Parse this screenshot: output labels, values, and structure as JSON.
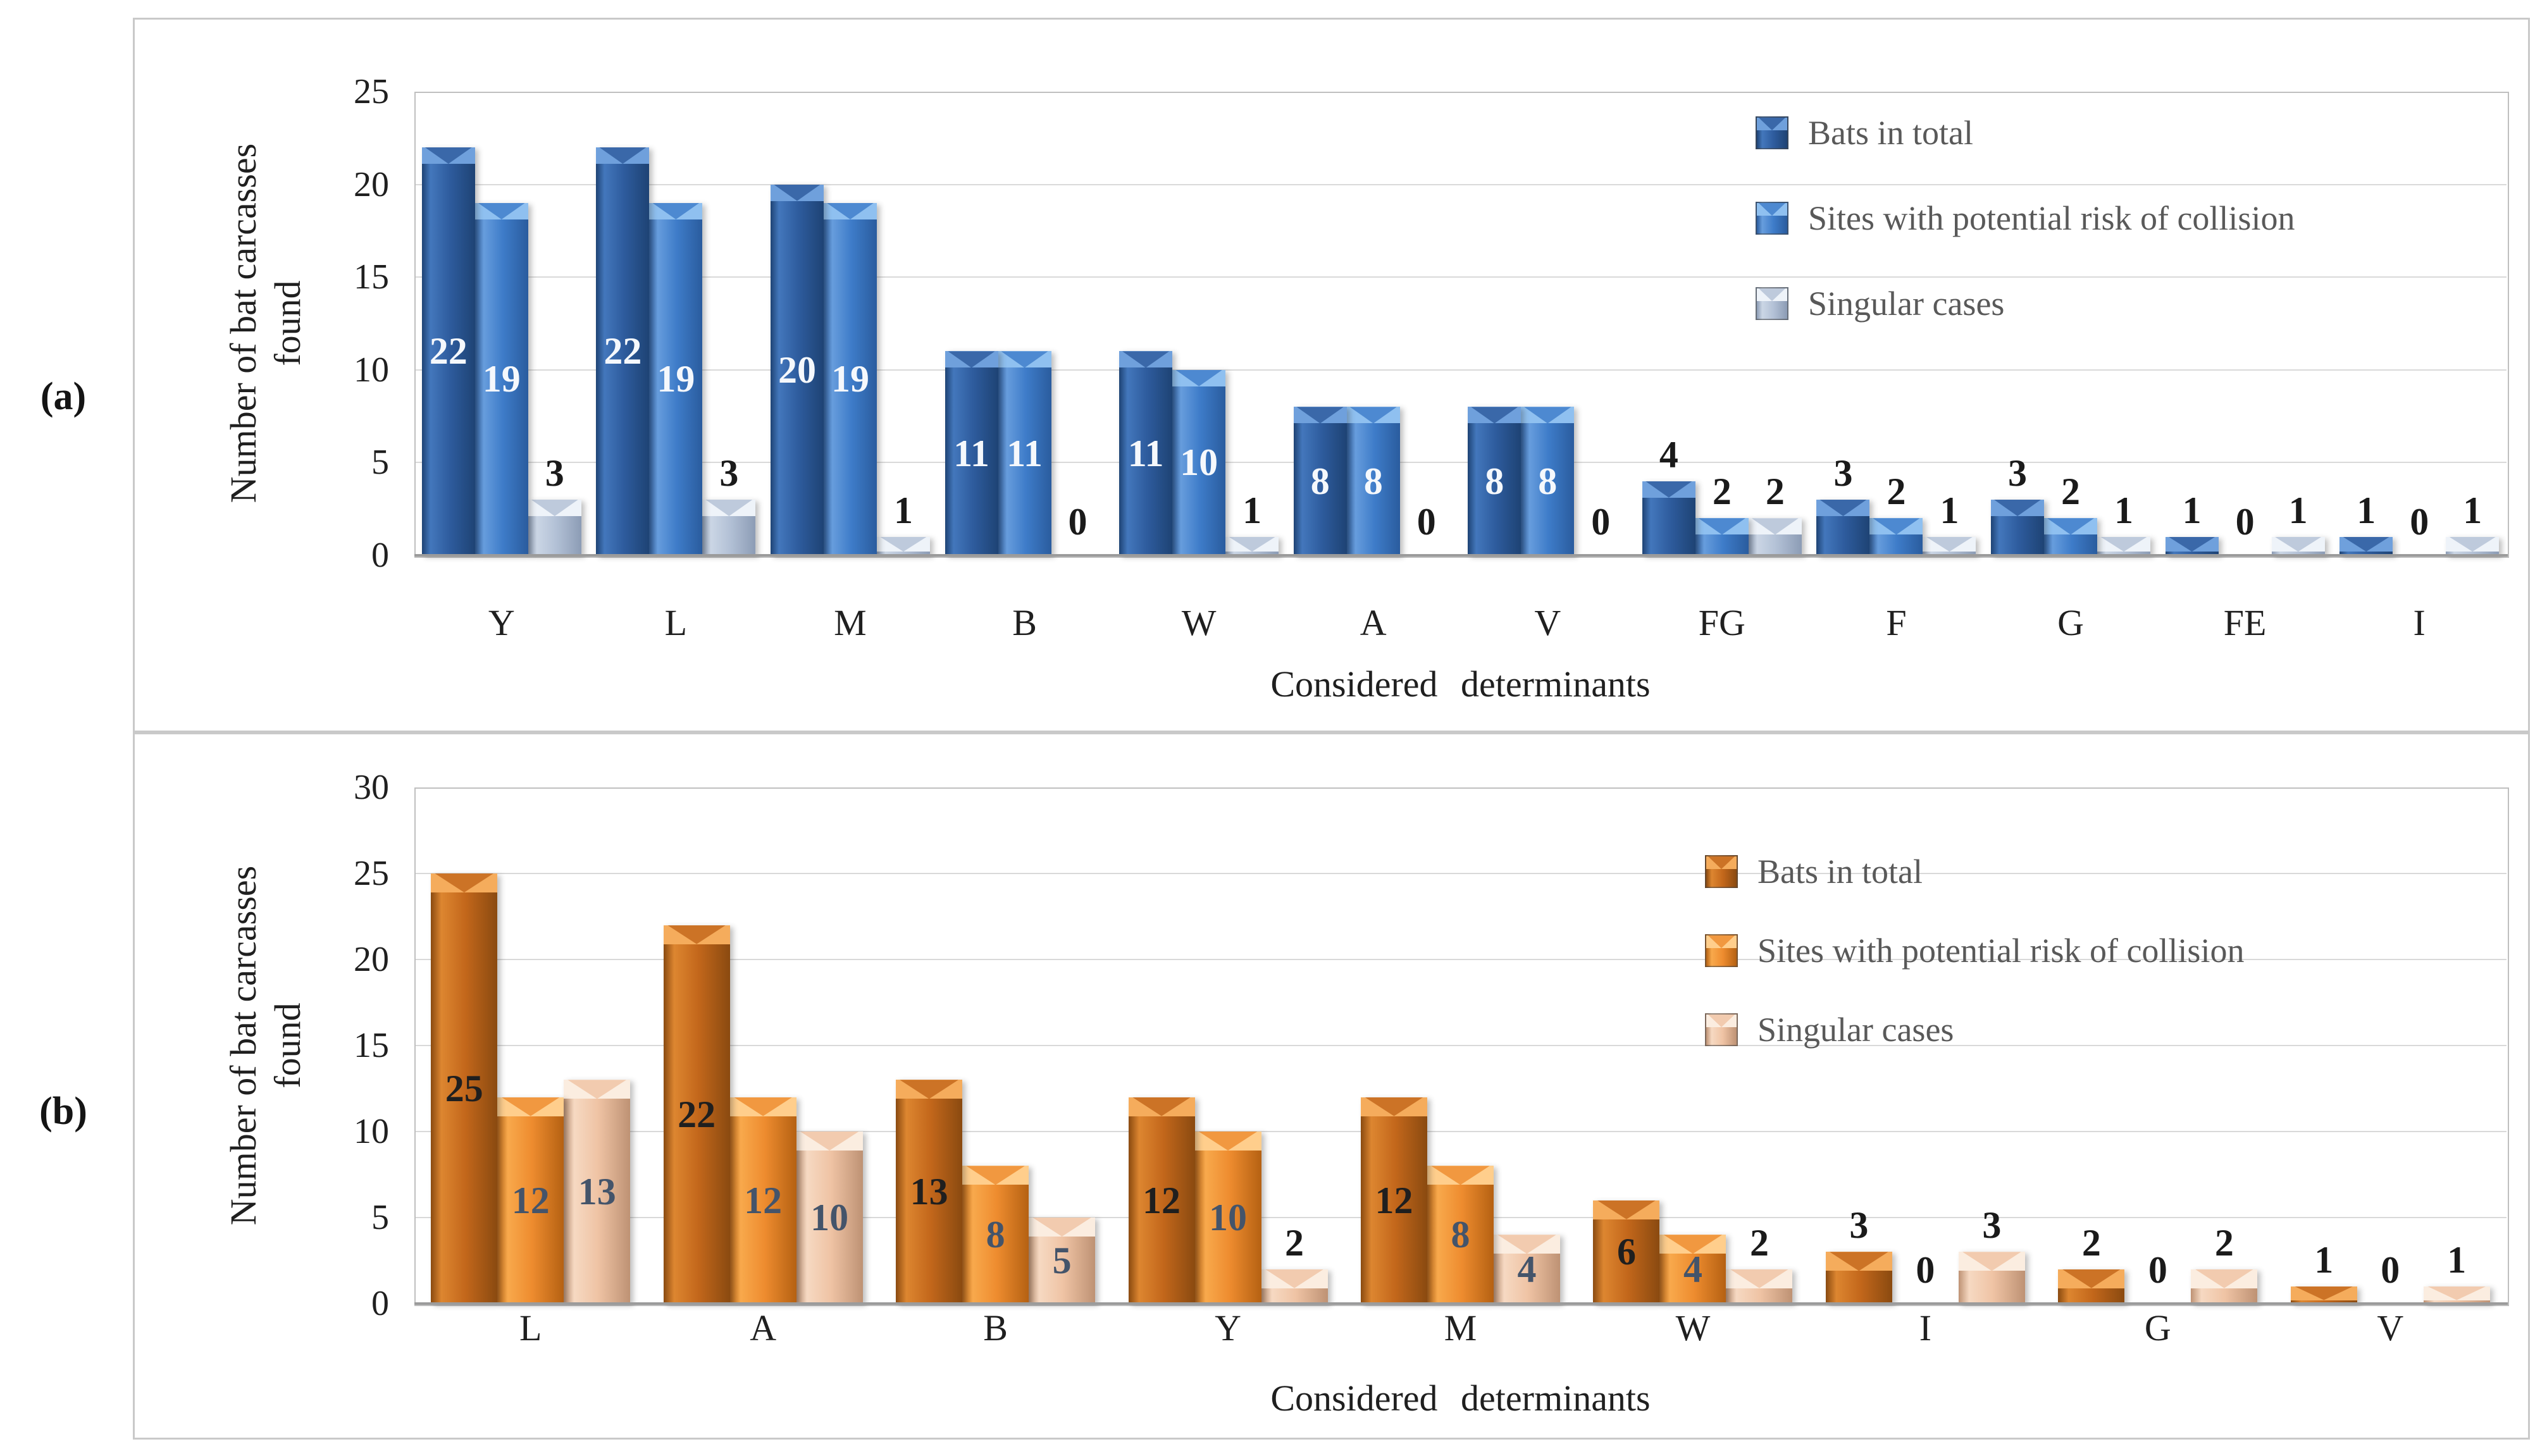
{
  "panels": [
    {
      "tag": "(a)"
    },
    {
      "tag": "(b)"
    }
  ],
  "chart_data": [
    {
      "type": "bar",
      "panel": "a",
      "title": "",
      "categories": [
        "Y",
        "L",
        "M",
        "B",
        "W",
        "A",
        "V",
        "FG",
        "F",
        "G",
        "FE",
        "I"
      ],
      "series": [
        {
          "name": "Bats in total",
          "values": [
            22,
            22,
            20,
            11,
            11,
            8,
            8,
            4,
            3,
            3,
            1,
            1
          ]
        },
        {
          "name": "Sites with potential risk of collision",
          "values": [
            19,
            19,
            19,
            11,
            10,
            8,
            8,
            2,
            2,
            2,
            0,
            0
          ]
        },
        {
          "name": "Singular cases",
          "values": [
            3,
            3,
            1,
            0,
            1,
            0,
            0,
            2,
            1,
            1,
            1,
            1
          ]
        }
      ],
      "xlabel": "Considered determinants",
      "ylabel": "Number of bat carcasses found",
      "ylabel_lines": [
        "Number of bat carcasses",
        "found"
      ],
      "ylim": [
        0,
        25
      ],
      "yticks": [
        0,
        5,
        10,
        15,
        20,
        25
      ],
      "grid": true,
      "legend_position": "top-right",
      "palette": [
        {
          "edge": "#1E4374",
          "mid": "#2E5C9E",
          "light": "#4377BC",
          "cap": "#6FA0DC"
        },
        {
          "edge": "#2A5C9E",
          "mid": "#3E7CC9",
          "light": "#679DDD",
          "cap": "#8FC0F0"
        },
        {
          "edge": "#8C9CB5",
          "mid": "#B3C1D6",
          "light": "#CBD6E5",
          "cap": "#EEF3F9"
        }
      ],
      "inside_label_colors": [
        "#F5F8FC",
        "#F5F8FC",
        "#F5F8FC"
      ],
      "above_label_color": "#1A1A1A"
    },
    {
      "type": "bar",
      "panel": "b",
      "title": "",
      "categories": [
        "L",
        "A",
        "B",
        "Y",
        "M",
        "W",
        "I",
        "G",
        "V"
      ],
      "series": [
        {
          "name": "Bats in total",
          "values": [
            25,
            22,
            13,
            12,
            12,
            6,
            3,
            2,
            1
          ]
        },
        {
          "name": "Sites with potential risk of collision",
          "values": [
            12,
            12,
            8,
            10,
            8,
            4,
            0,
            0,
            0
          ]
        },
        {
          "name": "Singular cases",
          "values": [
            13,
            10,
            5,
            2,
            4,
            2,
            3,
            2,
            1
          ]
        }
      ],
      "xlabel": "Considered determinants",
      "ylabel": "Number of bat carcasses found",
      "ylabel_lines": [
        "Number of bat carcasses",
        "found"
      ],
      "ylim": [
        0,
        30
      ],
      "yticks": [
        0,
        5,
        10,
        15,
        20,
        25,
        30
      ],
      "grid": true,
      "legend_position": "top-right",
      "palette": [
        {
          "edge": "#8A4A10",
          "mid": "#C3671B",
          "light": "#DD8630",
          "cap": "#F5AC5C"
        },
        {
          "edge": "#B56112",
          "mid": "#EE8C2F",
          "light": "#F8A94C",
          "cap": "#FFCE8C"
        },
        {
          "edge": "#BE9274",
          "mid": "#EFC3A4",
          "light": "#F6D9C2",
          "cap": "#FBEDE0"
        }
      ],
      "inside_label_colors": [
        "#1F1F1F",
        "#44546A",
        "#44546A"
      ],
      "above_label_color": "#1A1A1A"
    }
  ]
}
